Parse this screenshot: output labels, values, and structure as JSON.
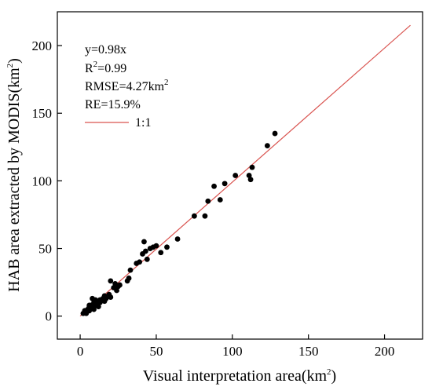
{
  "chart_data": {
    "type": "scatter",
    "xlabel": "Visual interpretation area(km",
    "xlabel_sup": "2",
    "xlabel_tail": ")",
    "ylabel": "HAB area extracted by MODIS(km",
    "ylabel_sup": "2",
    "ylabel_tail": ")",
    "xlim": [
      -15,
      225
    ],
    "ylim": [
      -17,
      225
    ],
    "x_ticks": [
      0,
      50,
      100,
      150,
      200
    ],
    "y_ticks": [
      0,
      50,
      100,
      150,
      200
    ],
    "x_tick_labels": [
      "0",
      "50",
      "100",
      "150",
      "200"
    ],
    "y_tick_labels": [
      "0",
      "50",
      "100",
      "150",
      "200"
    ],
    "grid": false,
    "annotations": {
      "equation": "y=0.98x",
      "r2_prefix": "R",
      "r2_sup": "2",
      "r2_value": "=0.99",
      "rmse_prefix": "RMSE=4.27km",
      "rmse_sup": "2",
      "re": "RE=15.9%"
    },
    "legend": {
      "placement": "top-left",
      "label": "1:1",
      "color": "#d9534f"
    },
    "line": {
      "color": "#d9534f",
      "x": [
        0,
        217
      ],
      "y": [
        0,
        215
      ]
    },
    "marker_color": "#000000",
    "points": [
      [
        2,
        2
      ],
      [
        3,
        4
      ],
      [
        4,
        3
      ],
      [
        5,
        5
      ],
      [
        6,
        4
      ],
      [
        6,
        7
      ],
      [
        7,
        8
      ],
      [
        8,
        13
      ],
      [
        8,
        6
      ],
      [
        9,
        10
      ],
      [
        10,
        8
      ],
      [
        10,
        12
      ],
      [
        11,
        11
      ],
      [
        12,
        7
      ],
      [
        13,
        10
      ],
      [
        14,
        12
      ],
      [
        15,
        13
      ],
      [
        16,
        11
      ],
      [
        17,
        13
      ],
      [
        19,
        16
      ],
      [
        20,
        14
      ],
      [
        20,
        26
      ],
      [
        22,
        21
      ],
      [
        23,
        24
      ],
      [
        24,
        19
      ],
      [
        25,
        22
      ],
      [
        26,
        23
      ],
      [
        31,
        26
      ],
      [
        32,
        28
      ],
      [
        33,
        34
      ],
      [
        37,
        39
      ],
      [
        39,
        40
      ],
      [
        41,
        46
      ],
      [
        42,
        55
      ],
      [
        43,
        48
      ],
      [
        44,
        42
      ],
      [
        46,
        50
      ],
      [
        48,
        51
      ],
      [
        50,
        52
      ],
      [
        53,
        47
      ],
      [
        57,
        51
      ],
      [
        64,
        57
      ],
      [
        75,
        74
      ],
      [
        82,
        74
      ],
      [
        84,
        85
      ],
      [
        88,
        96
      ],
      [
        92,
        86
      ],
      [
        95,
        98
      ],
      [
        102,
        104
      ],
      [
        111,
        104
      ],
      [
        112,
        101
      ],
      [
        113,
        110
      ],
      [
        123,
        126
      ],
      [
        128,
        135
      ],
      [
        4,
        2
      ],
      [
        6,
        8
      ],
      [
        9,
        5
      ],
      [
        11,
        9
      ],
      [
        13,
        12
      ],
      [
        16,
        15
      ]
    ]
  }
}
